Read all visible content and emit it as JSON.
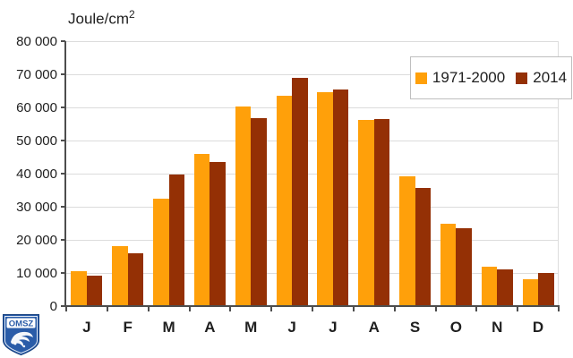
{
  "title": {
    "base": "Joule/cm",
    "sup": "2"
  },
  "legend": {
    "items": [
      {
        "label": "1971-2000",
        "color": "#FFA00A"
      },
      {
        "label": "2014",
        "color": "#943005"
      }
    ]
  },
  "logo": {
    "text": "OMSZ",
    "shield_color": "#2a5ca8"
  },
  "colors": {
    "series1": "#FFA00A",
    "series2": "#943005",
    "gridline": "#dcdcdc",
    "axis": "#4d4d4d",
    "text": "#1f1f1f"
  },
  "chart_data": {
    "type": "bar",
    "title": "Joule/cm2",
    "ylabel": "Joule/cm2",
    "xlabel": "",
    "categories": [
      "J",
      "F",
      "M",
      "A",
      "M",
      "J",
      "J",
      "A",
      "S",
      "O",
      "N",
      "D"
    ],
    "series": [
      {
        "name": "1971-2000",
        "color": "#FFA00A",
        "values": [
          10600,
          18000,
          32400,
          45900,
          60300,
          63400,
          64600,
          56300,
          39100,
          25000,
          11800,
          8200
        ]
      },
      {
        "name": "2014",
        "color": "#943005",
        "values": [
          9200,
          15900,
          39600,
          43400,
          56700,
          68900,
          65400,
          56600,
          35800,
          23600,
          11000,
          10100
        ]
      }
    ],
    "ylim": [
      0,
      80000
    ],
    "ytick_step": 10000,
    "ytick_labels": [
      "0",
      "10 000",
      "20 000",
      "30 000",
      "40 000",
      "50 000",
      "60 000",
      "70 000",
      "80 000"
    ],
    "grid": true,
    "legend_position": "top-right"
  }
}
